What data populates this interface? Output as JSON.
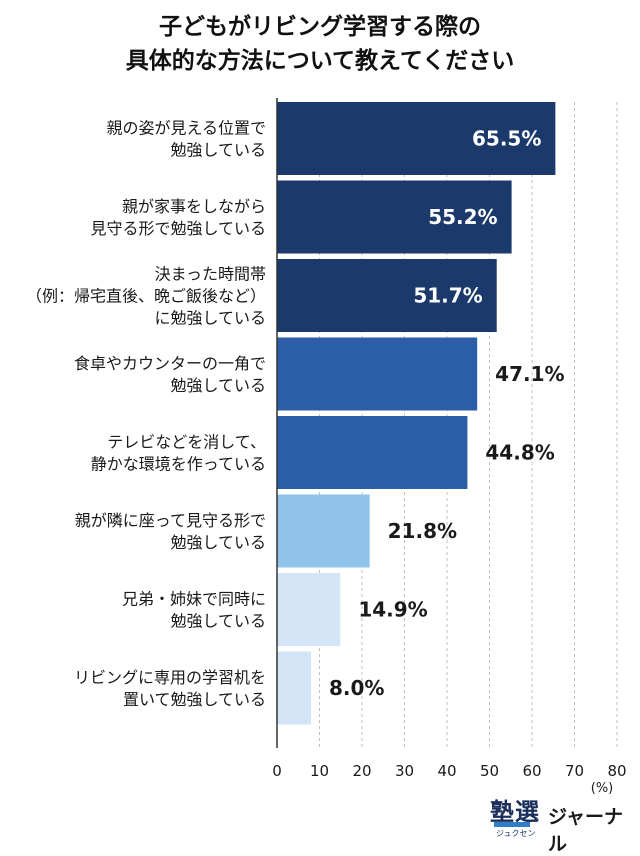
{
  "title_lines": [
    "子どもがリビング学習する際の",
    "具体的な方法について教えてください"
  ],
  "chart_data": {
    "type": "bar",
    "orientation": "horizontal",
    "categories": [
      [
        "親の姿が見える位置で",
        "勉強している"
      ],
      [
        "親が家事をしながら",
        "見守る形で勉強している"
      ],
      [
        "決まった時間帯",
        "（例：帰宅直後、晩ご飯後など）",
        "に勉強している"
      ],
      [
        "食卓やカウンターの一角で",
        "勉強している"
      ],
      [
        "テレビなどを消して、",
        "静かな環境を作っている"
      ],
      [
        "親が隣に座って見守る形で",
        "勉強している"
      ],
      [
        "兄弟・姉妹で同時に",
        "勉強している"
      ],
      [
        "リビングに専用の学習机を",
        "置いて勉強している"
      ]
    ],
    "values": [
      65.5,
      55.2,
      51.7,
      47.1,
      44.8,
      21.8,
      14.9,
      8.0
    ],
    "value_labels": [
      "65.5%",
      "55.2%",
      "51.7%",
      "47.1%",
      "44.8%",
      "21.8%",
      "14.9%",
      "8.0%"
    ],
    "bar_colors": [
      "#1b3a6b",
      "#1b3a6b",
      "#1b3a6b",
      "#2c5ea8",
      "#2c5ea8",
      "#8fc3ea",
      "#d3e5f7",
      "#d3e5f7"
    ],
    "label_colors": [
      "#ffffff",
      "#ffffff",
      "#ffffff",
      "#1a1a1a",
      "#1a1a1a",
      "#1a1a1a",
      "#1a1a1a",
      "#1a1a1a"
    ],
    "label_inside": [
      true,
      true,
      true,
      false,
      false,
      false,
      false,
      false
    ],
    "xticks": [
      0,
      10,
      20,
      30,
      40,
      50,
      60,
      70,
      80
    ],
    "xlim": [
      0,
      80
    ],
    "unit_label": "(%)",
    "grid": true
  },
  "brand": {
    "kanji": "塾選",
    "kana": "ジュクセン",
    "name": "ジャーナル"
  }
}
